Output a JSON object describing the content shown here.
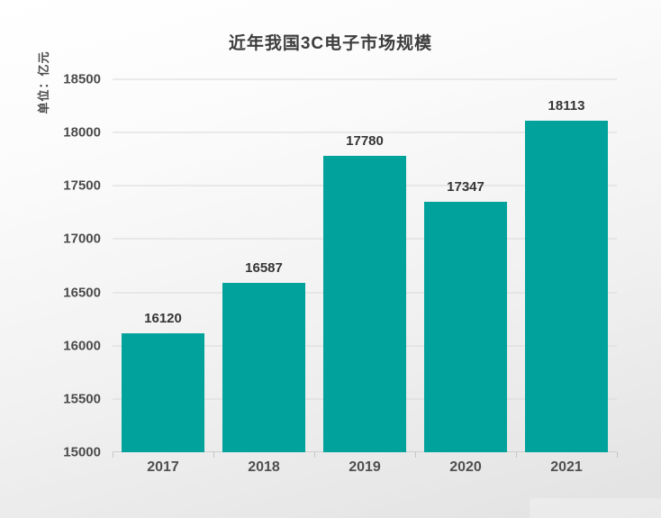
{
  "chart": {
    "title": "近年我国3C电子市场规模",
    "unit_label": "单位：亿元"
  },
  "chart_data": {
    "type": "bar",
    "title": "近年我国3C电子市场规模",
    "xlabel": "",
    "ylabel": "单位：亿元",
    "categories": [
      "2017",
      "2018",
      "2019",
      "2020",
      "2021"
    ],
    "values": [
      16120,
      16587,
      17780,
      17347,
      18113
    ],
    "ylim": [
      15000,
      18500
    ],
    "yticks": [
      15000,
      15500,
      16000,
      16500,
      17000,
      17500,
      18000,
      18500
    ],
    "grid": "horizontal",
    "legend_position": "none",
    "value_labels_shown": true,
    "bar_color": "#00a29b",
    "background": "gradient-white-to-gray"
  }
}
